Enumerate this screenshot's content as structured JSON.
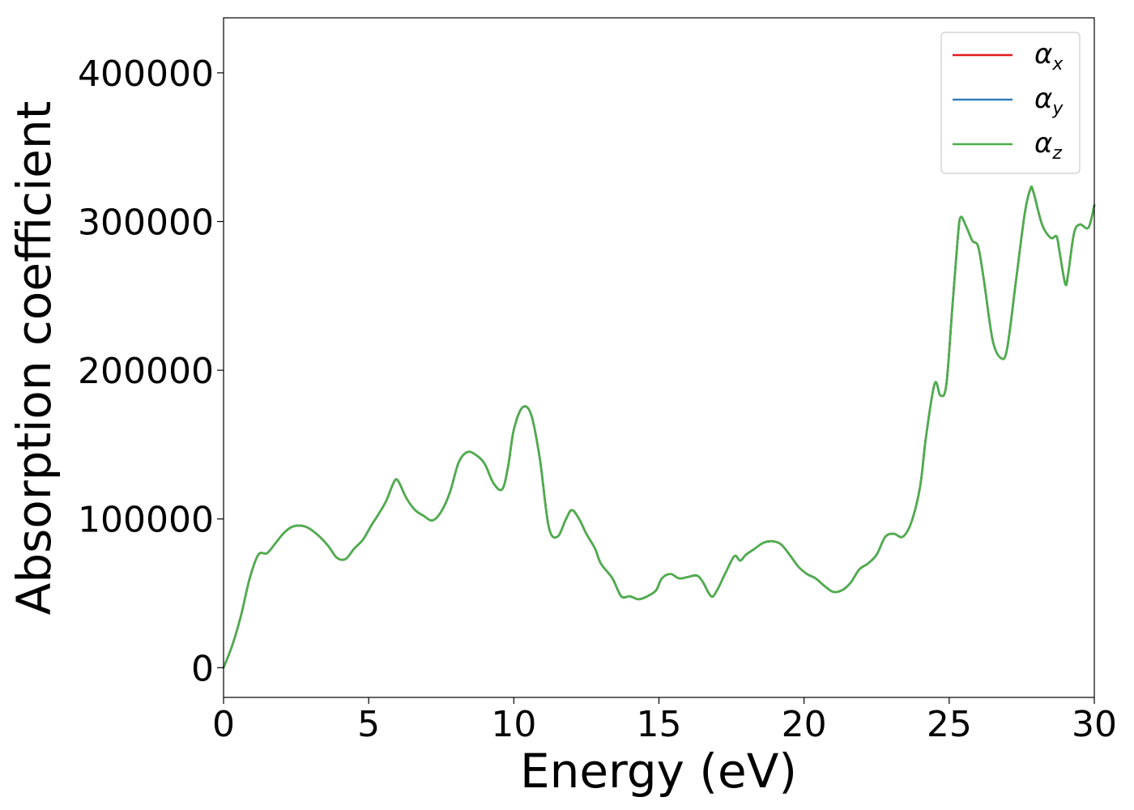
{
  "chart_data": {
    "type": "line",
    "title": "",
    "xlabel": "Energy (eV)",
    "ylabel": "Absorption coefficient",
    "xlim": [
      0,
      30
    ],
    "ylim": [
      -20000,
      437000
    ],
    "xticks": [
      0,
      5,
      10,
      15,
      20,
      25,
      30
    ],
    "xtick_labels": [
      "0",
      "5",
      "10",
      "15",
      "20",
      "25",
      "30"
    ],
    "yticks": [
      0,
      100000,
      200000,
      300000,
      400000
    ],
    "ytick_labels": [
      "0",
      "100000",
      "200000",
      "300000",
      "400000"
    ],
    "grid": false,
    "legend_position": "top-right",
    "x": [
      0,
      0.3,
      0.6,
      0.9,
      1.2,
      1.5,
      1.8,
      2.1,
      2.4,
      2.8,
      3.2,
      3.6,
      3.9,
      4.2,
      4.5,
      4.8,
      5.1,
      5.3,
      5.6,
      5.85,
      6.0,
      6.3,
      6.6,
      6.9,
      7.2,
      7.5,
      7.8,
      8.1,
      8.4,
      8.7,
      9.0,
      9.3,
      9.6,
      9.8,
      10.0,
      10.3,
      10.6,
      10.9,
      11.2,
      11.5,
      11.8,
      12.0,
      12.25,
      12.5,
      12.8,
      13.0,
      13.4,
      13.7,
      14.0,
      14.3,
      14.6,
      14.9,
      15.1,
      15.4,
      15.7,
      16.0,
      16.3,
      16.5,
      16.8,
      17.0,
      17.3,
      17.6,
      17.8,
      18.0,
      18.3,
      18.6,
      18.9,
      19.2,
      19.5,
      19.8,
      20.1,
      20.4,
      20.7,
      21.0,
      21.3,
      21.6,
      21.9,
      22.2,
      22.5,
      22.8,
      23.1,
      23.4,
      23.7,
      24.0,
      24.2,
      24.5,
      24.7,
      24.9,
      25.1,
      25.3,
      25.4,
      25.6,
      25.8,
      26.0,
      26.2,
      26.5,
      26.8,
      27.0,
      27.3,
      27.6,
      27.8,
      27.9,
      28.2,
      28.5,
      28.7,
      28.8,
      29.0,
      29.1,
      29.3,
      29.5,
      29.8,
      30.0
    ],
    "series": [
      {
        "name": "α_x",
        "color": "#e41a1c",
        "values": [
          0,
          15000,
          35000,
          60000,
          76000,
          77000,
          84000,
          91000,
          95000,
          95000,
          90000,
          82000,
          74000,
          73000,
          80000,
          86000,
          96000,
          102000,
          112000,
          124000,
          126000,
          114000,
          106000,
          102000,
          99000,
          105000,
          118000,
          138000,
          145000,
          143000,
          137000,
          124000,
          120000,
          135000,
          160000,
          175000,
          170000,
          140000,
          95000,
          88000,
          100000,
          106000,
          100000,
          90000,
          80000,
          70000,
          60000,
          48000,
          48000,
          46000,
          48000,
          52000,
          60000,
          63000,
          60000,
          61000,
          62000,
          58000,
          48000,
          52000,
          64000,
          75000,
          72000,
          76000,
          80000,
          84000,
          85000,
          83000,
          76000,
          68000,
          63000,
          60000,
          55000,
          51000,
          52000,
          57000,
          66000,
          70000,
          76000,
          88000,
          90000,
          88000,
          98000,
          122000,
          155000,
          191000,
          183000,
          190000,
          240000,
          290000,
          303000,
          296000,
          287000,
          283000,
          260000,
          220000,
          208000,
          215000,
          260000,
          305000,
          322000,
          320000,
          298000,
          289000,
          290000,
          280000,
          258000,
          265000,
          292000,
          298000,
          296000,
          311000
        ]
      },
      {
        "name": "α_y",
        "color": "#377eb8",
        "values": [
          0,
          15000,
          35000,
          60000,
          76000,
          77000,
          84000,
          91000,
          95000,
          95000,
          90000,
          82000,
          74000,
          73000,
          80000,
          86000,
          96000,
          102000,
          112000,
          124000,
          126000,
          114000,
          106000,
          102000,
          99000,
          105000,
          118000,
          138000,
          145000,
          143000,
          137000,
          124000,
          120000,
          135000,
          160000,
          175000,
          170000,
          140000,
          95000,
          88000,
          100000,
          106000,
          100000,
          90000,
          80000,
          70000,
          60000,
          48000,
          48000,
          46000,
          48000,
          52000,
          60000,
          63000,
          60000,
          61000,
          62000,
          58000,
          48000,
          52000,
          64000,
          75000,
          72000,
          76000,
          80000,
          84000,
          85000,
          83000,
          76000,
          68000,
          63000,
          60000,
          55000,
          51000,
          52000,
          57000,
          66000,
          70000,
          76000,
          88000,
          90000,
          88000,
          98000,
          122000,
          155000,
          191000,
          183000,
          190000,
          240000,
          290000,
          303000,
          296000,
          287000,
          283000,
          260000,
          220000,
          208000,
          215000,
          260000,
          305000,
          322000,
          320000,
          298000,
          289000,
          290000,
          280000,
          258000,
          265000,
          292000,
          298000,
          296000,
          311000
        ]
      },
      {
        "name": "α_z",
        "color": "#4daf4a",
        "values": [
          0,
          15000,
          35000,
          60000,
          76000,
          77000,
          84000,
          91000,
          95000,
          95000,
          90000,
          82000,
          74000,
          73000,
          80000,
          86000,
          96000,
          102000,
          112000,
          124000,
          126000,
          114000,
          106000,
          102000,
          99000,
          105000,
          118000,
          138000,
          145000,
          143000,
          137000,
          124000,
          120000,
          135000,
          160000,
          175000,
          170000,
          140000,
          95000,
          88000,
          100000,
          106000,
          100000,
          90000,
          80000,
          70000,
          60000,
          48000,
          48000,
          46000,
          48000,
          52000,
          60000,
          63000,
          60000,
          61000,
          62000,
          58000,
          48000,
          52000,
          64000,
          75000,
          72000,
          76000,
          80000,
          84000,
          85000,
          83000,
          76000,
          68000,
          63000,
          60000,
          55000,
          51000,
          52000,
          57000,
          66000,
          70000,
          76000,
          88000,
          90000,
          88000,
          98000,
          122000,
          155000,
          191000,
          183000,
          190000,
          240000,
          290000,
          303000,
          296000,
          287000,
          283000,
          260000,
          220000,
          208000,
          215000,
          260000,
          305000,
          322000,
          320000,
          298000,
          289000,
          290000,
          280000,
          258000,
          265000,
          292000,
          298000,
          296000,
          311000
        ]
      }
    ],
    "legend": [
      {
        "symbol": "α",
        "sub": "x",
        "color": "#e41a1c"
      },
      {
        "symbol": "α",
        "sub": "y",
        "color": "#377eb8"
      },
      {
        "symbol": "α",
        "sub": "z",
        "color": "#4daf4a"
      }
    ]
  }
}
